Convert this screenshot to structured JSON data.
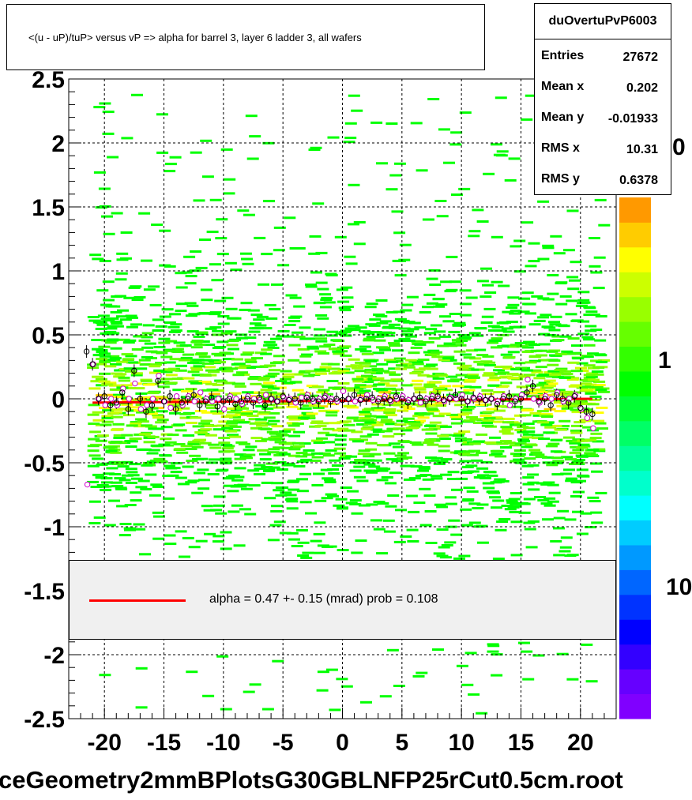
{
  "title": "<(u - uP)/tuP> versus   vP => alpha for barrel 3, layer 6 ladder 3, all wafers",
  "stats": {
    "name": "duOvertuPvP6003",
    "rows": [
      {
        "key": "Entries",
        "value": "27672"
      },
      {
        "key": "Mean x",
        "value": "0.202"
      },
      {
        "key": "Mean y",
        "value": "-0.01933"
      },
      {
        "key": "RMS x",
        "value": "10.31"
      },
      {
        "key": "RMS y",
        "value": "0.6378"
      }
    ]
  },
  "fit": {
    "text": "alpha =    0.47 +-  0.15 (mrad) prob = 0.108",
    "line_color": "#ff0000"
  },
  "file_label": "ceGeometry2mmBPlotsG30GBLNFP25rCut0.5cm.root",
  "z_axis": {
    "labels": [
      "0",
      "1",
      "10"
    ],
    "palette": [
      "#8000ff",
      "#6600ff",
      "#3300ff",
      "#0000ff",
      "#0033ff",
      "#0066ff",
      "#0099ff",
      "#00ccff",
      "#00ffff",
      "#00ffcc",
      "#00ff99",
      "#00ff66",
      "#00ff33",
      "#00ff00",
      "#33ff00",
      "#66ff00",
      "#99ff00",
      "#ccff00",
      "#ffff00",
      "#ffcc00",
      "#ff9900"
    ]
  },
  "chart_data": {
    "type": "scatter",
    "title": "<(u - uP)/tuP> versus   vP => alpha for barrel 3, layer 6 ladder 3, all wafers",
    "xlim": [
      -23,
      23
    ],
    "ylim": [
      -2.5,
      2.5
    ],
    "xticks": [
      -20,
      -15,
      -10,
      -5,
      0,
      5,
      10,
      15,
      20
    ],
    "yticks": [
      -2.5,
      -2,
      -1.5,
      -1,
      -0.5,
      0,
      0.5,
      1,
      1.5,
      2,
      2.5
    ],
    "grid": true,
    "fit_line": {
      "x": [
        -21,
        21
      ],
      "y": [
        -0.03,
        0.0
      ]
    },
    "profile": {
      "x": [
        -21.5,
        -21,
        -20.5,
        -20,
        -19.5,
        -19,
        -18.5,
        -18,
        -17.5,
        -17,
        -16.5,
        -16,
        -15.5,
        -15,
        -14.5,
        -14,
        -13.5,
        -13,
        -12.5,
        -12,
        -11.5,
        -11,
        -10.5,
        -10,
        -9.5,
        -9,
        -8.5,
        -8,
        -7.5,
        -7,
        -6.5,
        -6,
        -5.5,
        -5,
        -4.5,
        -4,
        -3.5,
        -3,
        -2.5,
        -2,
        -1.5,
        -1,
        -0.5,
        0,
        0.5,
        1,
        1.5,
        2,
        2.5,
        3,
        3.5,
        4,
        4.5,
        5,
        5.5,
        6,
        6.5,
        7,
        7.5,
        8,
        8.5,
        9,
        9.5,
        10,
        10.5,
        11,
        11.5,
        12,
        12.5,
        13,
        13.5,
        14,
        14.5,
        15,
        15.5,
        16,
        16.5,
        17,
        17.5,
        18,
        18.5,
        19,
        19.5,
        20,
        20.5,
        21
      ],
      "y": [
        0.37,
        0.27,
        0.0,
        0.02,
        -0.05,
        -0.03,
        0.05,
        -0.08,
        0.22,
        0.0,
        -0.1,
        -0.05,
        0.14,
        -0.02,
        0.02,
        -0.08,
        -0.03,
        0.0,
        0.03,
        -0.05,
        -0.02,
        0.01,
        -0.06,
        -0.02,
        0.0,
        -0.04,
        -0.02,
        0.0,
        -0.03,
        0.01,
        -0.05,
        0.0,
        -0.02,
        0.02,
        -0.01,
        0.0,
        -0.03,
        0.01,
        0.0,
        -0.02,
        0.01,
        -0.02,
        0.0,
        -0.01,
        0.0,
        0.03,
        -0.01,
        0.0,
        0.01,
        -0.02,
        0.0,
        -0.01,
        0.02,
        0.0,
        -0.03,
        0.0,
        0.01,
        -0.02,
        0.0,
        0.02,
        -0.01,
        0.0,
        0.03,
        0.0,
        -0.02,
        0.01,
        0.0,
        -0.01,
        0.0,
        -0.04,
        0.0,
        0.02,
        -0.02,
        0.0,
        0.05,
        0.1,
        -0.02,
        0.0,
        -0.05,
        0.03,
        0.0,
        -0.03,
        0.02,
        -0.07,
        -0.1,
        -0.12
      ],
      "y_alt": [
        -0.67,
        0.27,
        0.0,
        -0.05,
        0.0,
        -0.05,
        0.08,
        0.0,
        0.12,
        -0.08,
        -0.05,
        0.0,
        0.18,
        -0.02,
        -0.07,
        0.02,
        -0.05,
        0.02,
        -0.02,
        0.05,
        0.0,
        -0.02,
        0.0,
        -0.08,
        0.02,
        0.0,
        -0.04,
        0.02,
        0.0,
        -0.01,
        0.03,
        0.0,
        -0.02,
        0.01,
        0.0,
        -0.03,
        0.01,
        0.03,
        -0.02,
        0.0,
        0.02,
        0.0,
        -0.02,
        0.06,
        0.0,
        -0.02,
        0.0,
        0.03,
        -0.01,
        0.0,
        0.02,
        -0.02,
        0.0,
        0.02,
        -0.01,
        0.0,
        -0.03,
        0.0,
        0.02,
        0.0,
        -0.02,
        0.01,
        0.0,
        0.03,
        -0.02,
        0.0,
        0.02,
        -0.01,
        0.0,
        -0.02,
        0.02,
        -0.05,
        0.0,
        0.03,
        0.15,
        0.0,
        -0.03,
        0.02,
        0.0,
        0.05,
        -0.02,
        0.0,
        0.03,
        -0.08,
        -0.15,
        -0.23
      ]
    }
  }
}
